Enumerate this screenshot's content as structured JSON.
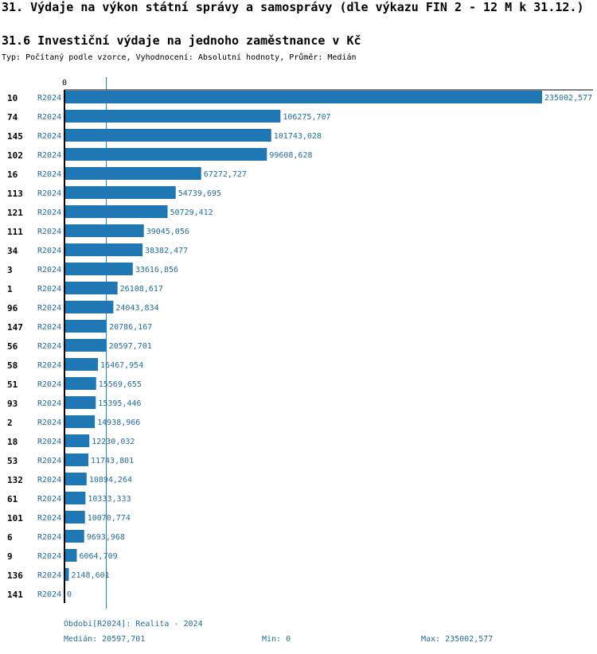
{
  "header": {
    "title": "31. Výdaje na výkon státní správy a samosprávy (dle výkazu FIN 2 - 12 M k 31.12.)",
    "subtitle": "31.6 Investiční výdaje na jednoho zaměstnance v Kč",
    "meta": "Typ: Počítaný podle vzorce, Vyhodnocení: Absolutní hodnoty, Průměr: Medián"
  },
  "colors": {
    "bar": "#1f77b4",
    "label": "#1f6e9c",
    "axis": "#000000",
    "median_line": "#1f77b4"
  },
  "chart_data": {
    "type": "bar",
    "orientation": "horizontal",
    "axis_tick_label": "0",
    "xlim": [
      0,
      235002.577
    ],
    "median": 20597.701,
    "categories": [
      "10",
      "74",
      "145",
      "102",
      "16",
      "113",
      "121",
      "111",
      "34",
      "3",
      "1",
      "96",
      "147",
      "56",
      "58",
      "51",
      "93",
      "2",
      "18",
      "53",
      "132",
      "61",
      "101",
      "6",
      "9",
      "136",
      "141"
    ],
    "period_labels": [
      "R2024",
      "R2024",
      "R2024",
      "R2024",
      "R2024",
      "R2024",
      "R2024",
      "R2024",
      "R2024",
      "R2024",
      "R2024",
      "R2024",
      "R2024",
      "R2024",
      "R2024",
      "R2024",
      "R2024",
      "R2024",
      "R2024",
      "R2024",
      "R2024",
      "R2024",
      "R2024",
      "R2024",
      "R2024",
      "R2024",
      "R2024"
    ],
    "values": [
      235002.577,
      106275.707,
      101743.028,
      99608.628,
      67272.727,
      54739.695,
      50729.412,
      39045.056,
      38382.477,
      33616.856,
      26108.617,
      24043.834,
      20786.167,
      20597.701,
      16467.954,
      15569.655,
      15395.446,
      14938.966,
      12230.032,
      11743.801,
      10894.264,
      10333.333,
      10070.774,
      9693.968,
      6064.709,
      2148.601,
      0
    ],
    "value_labels": [
      "235002,577",
      "106275,707",
      "101743,028",
      "99608,628",
      "67272,727",
      "54739,695",
      "50729,412",
      "39045,056",
      "38382,477",
      "33616,856",
      "26108,617",
      "24043,834",
      "20786,167",
      "20597,701",
      "16467,954",
      "15569,655",
      "15395,446",
      "14938,966",
      "12230,032",
      "11743,801",
      "10894,264",
      "10333,333",
      "10070,774",
      "9693,968",
      "6064,709",
      "2148,601",
      "0"
    ]
  },
  "footer": {
    "period": "Období[R2024]: Realita - 2024",
    "median": "Medián: 20597,701",
    "min": "Min: 0",
    "max": "Max: 235002,577"
  }
}
